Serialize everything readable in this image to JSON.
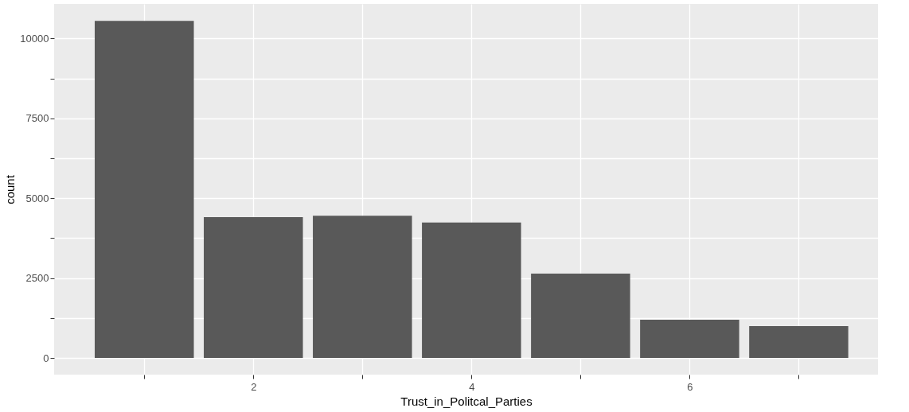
{
  "chart_data": {
    "type": "bar",
    "xlabel": "Trust_in_Politcal_Parties",
    "ylabel": "count",
    "x": [
      1,
      2,
      3,
      4,
      5,
      6,
      7
    ],
    "values": [
      10550,
      4410,
      4450,
      4240,
      2640,
      1200,
      1000
    ],
    "color": "#595959",
    "xlim": [
      0.21,
      7.69
    ],
    "xticks": [
      {
        "value": 1,
        "label": null
      },
      2,
      {
        "value": 3,
        "label": null
      },
      4,
      {
        "value": 5,
        "label": null
      },
      6,
      {
        "value": 7,
        "label": null
      }
    ],
    "ylim": [
      -520,
      11080
    ],
    "yticks": [
      0,
      {
        "value": 1250,
        "label": null
      },
      2500,
      {
        "value": 3750,
        "label": null
      },
      5000,
      {
        "value": 6250,
        "label": null
      },
      7500,
      {
        "value": 8750,
        "label": null
      },
      10000
    ],
    "grid": true
  }
}
